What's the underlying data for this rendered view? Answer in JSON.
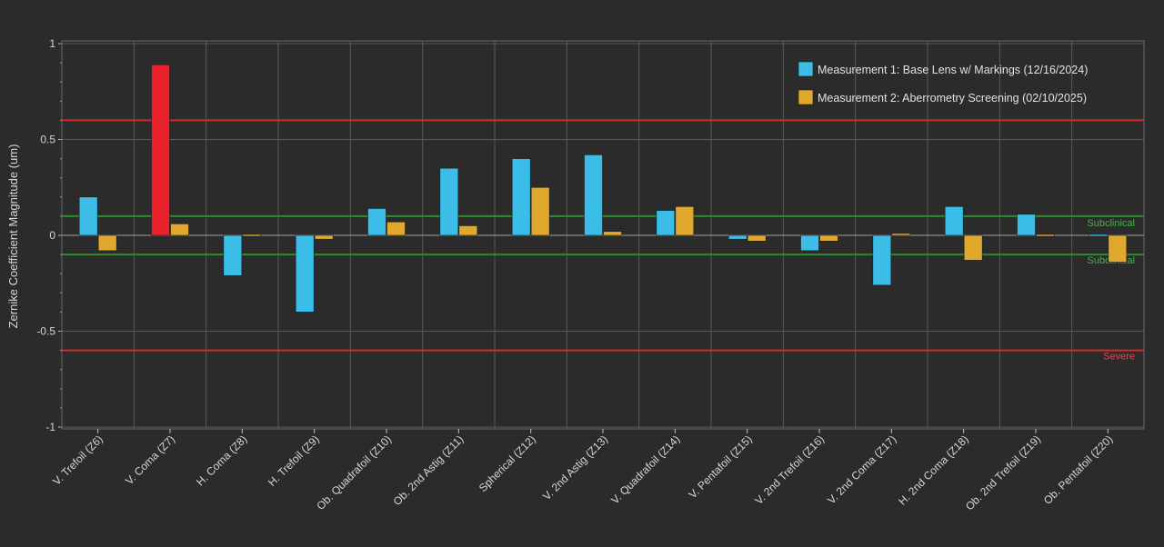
{
  "chart_data": {
    "type": "bar",
    "ylabel": "Zernike Coefficient Magnitude (um)",
    "ylim": [
      -1,
      1
    ],
    "yticks": [
      1,
      0.5,
      0,
      -0.5,
      -1
    ],
    "ytick_labels": [
      "1",
      "0.5",
      "0",
      "-0.5",
      "-1"
    ],
    "grid": true,
    "legend_position": "top-right",
    "categories": [
      "V. Trefoil (Z6)",
      "V. Coma (Z7)",
      "H. Coma (Z8)",
      "H. Trefoil (Z9)",
      "Ob. Quadrafoil (Z10)",
      "Ob. 2nd Astig (Z11)",
      "Spherical (Z12)",
      "V. 2nd Astig (Z13)",
      "V. Quadrafoil (Z14)",
      "V. Pentafoil (Z15)",
      "V. 2nd Trefoil (Z16)",
      "V. 2nd Coma (Z17)",
      "H. 2nd Coma (Z18)",
      "Ob. 2nd Trefoil (Z19)",
      "Ob. Pentafoil (Z20)"
    ],
    "series": [
      {
        "name": "Measurement 1: Base Lens w/ Markings (12/16/2024)",
        "color": "#3bbde8",
        "values": [
          0.2,
          0.89,
          -0.21,
          -0.4,
          0.14,
          0.35,
          0.4,
          0.42,
          0.13,
          -0.02,
          -0.08,
          -0.26,
          0.15,
          0.11,
          0.0
        ]
      },
      {
        "name": "Measurement 2: Aberrometry Screening (02/10/2025)",
        "color": "#e0a92e",
        "values": [
          -0.08,
          0.06,
          0.0,
          -0.02,
          0.07,
          0.05,
          0.25,
          0.02,
          0.15,
          -0.03,
          -0.03,
          0.01,
          -0.13,
          0.0,
          -0.14
        ]
      }
    ],
    "highlight": {
      "threshold": 0.6,
      "color": "#e8212b"
    },
    "thresholds": [
      {
        "value": 0.6,
        "color": "#d42a2a",
        "label": ""
      },
      {
        "value": 0.1,
        "color": "#2e8b2e",
        "label": "Subclinical"
      },
      {
        "value": -0.1,
        "color": "#2e8b2e",
        "label": "Subclinical"
      },
      {
        "value": -0.6,
        "color": "#d42a2a",
        "label": "Severe"
      }
    ],
    "colors": {
      "background": "#2b2b2b",
      "plot_background": "#2b2b2b",
      "grid": "#5a5a5a",
      "frame": "#6a6a6a",
      "zero_line": "#8a8a8a"
    }
  }
}
